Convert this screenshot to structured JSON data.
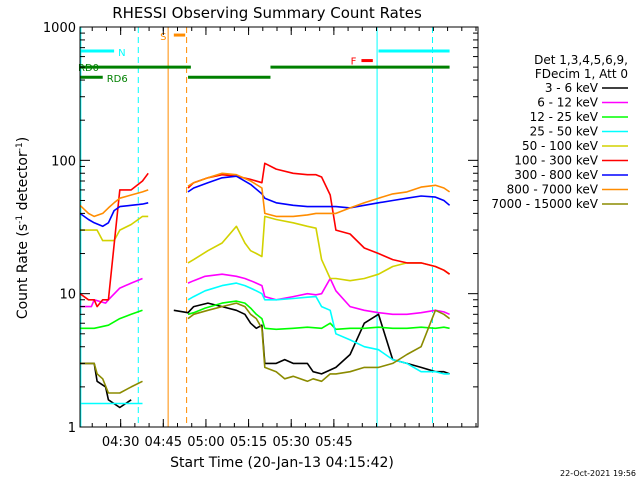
{
  "chart_data": {
    "type": "line",
    "title": "RHESSI Observing Summary Count Rates",
    "xlabel": "Start Time (20-Jan-13 04:15:42)",
    "ylabel_main": "Count Rate (s",
    "ylabel_sup": "-1",
    "ylabel_mid": " detector",
    "ylabel_end": ")",
    "yscale": "log",
    "ylim": [
      1,
      1000
    ],
    "x_range_min": [
      0,
      140
    ],
    "x_ticks": [
      {
        "min": 14.3,
        "label": "04:30"
      },
      {
        "min": 29.3,
        "label": "04:45"
      },
      {
        "min": 44.3,
        "label": "05:00"
      },
      {
        "min": 59.3,
        "label": "05:15"
      },
      {
        "min": 74.3,
        "label": "05:30"
      },
      {
        "min": 89.3,
        "label": "05:45"
      }
    ],
    "y_ticks": [
      {
        "value": 1,
        "label": "1"
      },
      {
        "value": 10,
        "label": "10"
      },
      {
        "value": 100,
        "label": "100"
      },
      {
        "value": 1000,
        "label": "1000"
      }
    ],
    "legend_header": [
      "Det 1,3,4,5,6,9,",
      "FDecim 1, Att 0"
    ],
    "series": [
      {
        "name": "3 - 6 keV",
        "color": "#000000",
        "x": [
          0,
          5,
          6,
          9,
          10,
          14,
          18,
          22,
          30,
          33,
          38,
          40,
          45,
          50,
          55,
          58,
          60,
          62,
          64,
          65,
          69,
          72,
          75,
          80,
          82,
          85,
          90,
          95,
          100,
          105,
          110,
          115,
          120,
          125,
          128,
          130
        ],
        "y": [
          3.0,
          3.0,
          2.2,
          2.0,
          1.6,
          1.4,
          1.6,
          null,
          null,
          7.5,
          7.2,
          8.0,
          8.5,
          8.0,
          7.5,
          7.0,
          6.0,
          5.5,
          5.8,
          3.0,
          3.0,
          3.2,
          3.0,
          3.0,
          2.6,
          2.5,
          2.8,
          3.5,
          6.0,
          7.0,
          3.2,
          3.0,
          2.8,
          2.6,
          2.6,
          2.5
        ]
      },
      {
        "name": "6 - 12 keV",
        "color": "#ff00ff",
        "x": [
          0,
          4,
          5,
          9,
          10,
          14,
          18,
          22,
          30,
          33,
          38,
          40,
          44,
          50,
          55,
          58,
          60,
          62,
          64,
          65,
          69,
          75,
          80,
          83,
          85,
          88,
          90,
          95,
          100,
          105,
          110,
          115,
          120,
          125,
          128,
          130
        ],
        "y": [
          8.0,
          8.0,
          9.0,
          8.5,
          9.0,
          11.0,
          12.0,
          13.0,
          null,
          null,
          12.0,
          12.5,
          13.5,
          14.0,
          13.5,
          13.0,
          12.5,
          12.0,
          11.5,
          9.5,
          9.0,
          9.5,
          10.0,
          9.8,
          10.0,
          13.0,
          10.5,
          8.0,
          7.5,
          7.2,
          7.0,
          7.0,
          7.2,
          7.5,
          7.3,
          7.0
        ]
      },
      {
        "name": "12 - 25 keV",
        "color": "#00ff00",
        "x": [
          0,
          5,
          10,
          14,
          18,
          22,
          30,
          33,
          38,
          40,
          44,
          50,
          55,
          58,
          60,
          62,
          64,
          65,
          69,
          75,
          80,
          85,
          88,
          90,
          95,
          100,
          105,
          110,
          115,
          120,
          125,
          128,
          130
        ],
        "y": [
          5.5,
          5.5,
          5.8,
          6.5,
          7.0,
          7.5,
          null,
          null,
          7.0,
          7.2,
          7.8,
          8.5,
          8.8,
          8.5,
          7.8,
          7.0,
          6.5,
          5.5,
          5.4,
          5.5,
          5.6,
          5.5,
          6.0,
          5.4,
          5.5,
          5.5,
          5.6,
          5.5,
          5.5,
          5.6,
          5.5,
          5.6,
          5.5
        ]
      },
      {
        "name": "25 - 50 keV",
        "color": "#00ffff",
        "x": [
          0,
          5,
          10,
          14,
          18,
          22,
          30,
          33,
          38,
          40,
          44,
          50,
          55,
          58,
          60,
          62,
          64,
          65,
          69,
          75,
          80,
          83,
          85,
          88,
          90,
          95,
          100,
          105,
          110,
          115,
          120,
          125,
          128,
          130
        ],
        "y": [
          1.5,
          1.5,
          1.5,
          1.5,
          1.5,
          1.5,
          null,
          null,
          9.0,
          9.5,
          10.5,
          11.5,
          12.0,
          11.5,
          11.0,
          10.5,
          10.0,
          9.0,
          9.0,
          9.2,
          9.4,
          9.5,
          8.0,
          7.5,
          5.0,
          4.5,
          4.0,
          3.8,
          3.2,
          3.0,
          2.6,
          2.6,
          2.5,
          2.5
        ]
      },
      {
        "name": "50 - 100 keV",
        "color": "#d2d200",
        "x": [
          0,
          6,
          8,
          12,
          14,
          18,
          22,
          24,
          30,
          33,
          38,
          40,
          45,
          50,
          55,
          58,
          60,
          62,
          64,
          65,
          69,
          75,
          80,
          83,
          85,
          88,
          90,
          95,
          100,
          105,
          110,
          115,
          120,
          125,
          128,
          130
        ],
        "y": [
          30,
          30,
          25,
          25,
          30,
          33,
          38,
          38,
          null,
          null,
          17,
          18,
          21,
          24,
          32,
          24,
          21,
          20,
          19,
          38,
          36,
          34,
          32,
          31,
          18,
          13,
          13,
          12.5,
          13,
          14,
          16,
          17,
          17,
          16,
          15,
          14
        ]
      },
      {
        "name": "100 - 300 keV",
        "color": "#ff0000",
        "x": [
          0,
          3,
          5,
          6,
          8,
          10,
          14,
          18,
          22,
          24,
          30,
          33,
          38,
          40,
          45,
          50,
          55,
          60,
          64,
          65,
          69,
          75,
          80,
          83,
          85,
          88,
          90,
          95,
          100,
          105,
          110,
          115,
          120,
          125,
          128,
          130
        ],
        "y": [
          10,
          9,
          9,
          8,
          9,
          9,
          60,
          60,
          70,
          80,
          null,
          null,
          62,
          68,
          74,
          78,
          76,
          72,
          68,
          95,
          86,
          80,
          78,
          78,
          75,
          55,
          30,
          28,
          22,
          20,
          18,
          17,
          17,
          16,
          15,
          14
        ]
      },
      {
        "name": "300 - 800 keV",
        "color": "#0000ff",
        "x": [
          0,
          3,
          5,
          8,
          10,
          12,
          14,
          18,
          22,
          24,
          30,
          33,
          38,
          40,
          45,
          50,
          55,
          60,
          64,
          65,
          69,
          75,
          80,
          83,
          85,
          88,
          90,
          95,
          100,
          105,
          110,
          115,
          120,
          125,
          128,
          130
        ],
        "y": [
          40,
          36,
          34,
          32,
          34,
          42,
          45,
          46,
          47,
          48,
          null,
          null,
          58,
          62,
          68,
          74,
          76,
          66,
          56,
          52,
          48,
          46,
          45,
          45,
          45,
          45,
          45,
          44,
          46,
          48,
          50,
          52,
          54,
          53,
          50,
          46
        ]
      },
      {
        "name": "800 - 7000 keV",
        "color": "#ff8c00",
        "x": [
          0,
          3,
          5,
          8,
          10,
          12,
          14,
          18,
          22,
          24,
          30,
          33,
          38,
          40,
          45,
          50,
          55,
          60,
          64,
          65,
          69,
          75,
          80,
          83,
          85,
          88,
          90,
          95,
          100,
          105,
          110,
          115,
          120,
          125,
          128,
          130
        ],
        "y": [
          46,
          40,
          38,
          40,
          44,
          48,
          52,
          55,
          58,
          60,
          null,
          null,
          64,
          68,
          74,
          80,
          78,
          70,
          62,
          40,
          38,
          38,
          39,
          40,
          40,
          40,
          40,
          44,
          48,
          52,
          56,
          58,
          63,
          65,
          62,
          58
        ]
      },
      {
        "name": "7000 - 15000 keV",
        "color": "#8b8b00",
        "x": [
          0,
          5,
          6,
          8,
          10,
          14,
          18,
          22,
          24,
          30,
          33,
          38,
          40,
          45,
          50,
          55,
          58,
          60,
          62,
          64,
          65,
          69,
          72,
          75,
          80,
          82,
          85,
          88,
          90,
          95,
          100,
          105,
          110,
          115,
          120,
          125,
          128,
          130
        ],
        "y": [
          3.0,
          3.0,
          2.5,
          2.3,
          1.8,
          1.8,
          2.0,
          2.2,
          null,
          null,
          null,
          6.5,
          7.0,
          7.5,
          8.0,
          8.5,
          8.0,
          7.0,
          6.5,
          5.5,
          2.8,
          2.6,
          2.3,
          2.4,
          2.2,
          2.3,
          2.2,
          2.5,
          2.5,
          2.6,
          2.8,
          2.8,
          3.0,
          3.5,
          4.0,
          7.5,
          7.0,
          6.5
        ]
      }
    ],
    "state_bars": [
      {
        "label": "N",
        "color": "#00ffff",
        "spans": [
          [
            0,
            12
          ],
          [
            105,
            130
          ]
        ],
        "value": 660
      },
      {
        "label": "S",
        "color": "#ff8c00",
        "spans": [
          [
            33,
            37
          ]
        ],
        "value": 870
      },
      {
        "label": "RD0",
        "color": "#008000",
        "spans": [
          [
            0,
            39
          ],
          [
            67,
            130
          ]
        ],
        "value": 500
      },
      {
        "label": "RD6",
        "color": "#008000",
        "spans": [
          [
            0,
            8
          ],
          [
            38,
            67
          ]
        ],
        "value": 420
      },
      {
        "label": "F",
        "color": "#ff0000",
        "spans": [
          [
            99,
            103
          ]
        ],
        "value": 560
      }
    ],
    "vertical_lines": [
      {
        "min": 0.3,
        "color": "#00ffff",
        "style": "solid"
      },
      {
        "min": 20.5,
        "color": "#00ffff",
        "style": "dashed"
      },
      {
        "min": 31,
        "color": "#ff8c00",
        "style": "solid"
      },
      {
        "min": 37.5,
        "color": "#ff8c00",
        "style": "dashed"
      },
      {
        "min": 104.5,
        "color": "#00ffff",
        "style": "solid"
      },
      {
        "min": 124,
        "color": "#00ffff",
        "style": "dashed"
      }
    ],
    "timestamp": "22-Oct-2021 19:56"
  }
}
